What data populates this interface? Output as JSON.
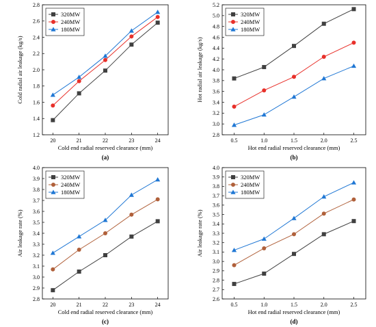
{
  "chart_data": [
    {
      "type": "line",
      "panel_label": "(a)",
      "xlabel": "Cold end radial reserved clearance (mm)",
      "ylabel": "Cold radial air leakage (kg/s)",
      "x": [
        20,
        21,
        22,
        23,
        24
      ],
      "x_ticks": [
        "20",
        "21",
        "22",
        "23",
        "24"
      ],
      "xlim": [
        19.6,
        24.4
      ],
      "ylim": [
        1.2,
        2.8
      ],
      "y_ticks": [
        "1.2",
        "1.4",
        "1.6",
        "1.8",
        "2.0",
        "2.2",
        "2.4",
        "2.6",
        "2.8"
      ],
      "legend": "top-left",
      "series": [
        {
          "name": "320MW",
          "color": "#404040",
          "marker": "square",
          "values": [
            1.38,
            1.71,
            1.99,
            2.31,
            2.58
          ]
        },
        {
          "name": "240MW",
          "color": "#e8302a",
          "marker": "circle",
          "values": [
            1.56,
            1.86,
            2.12,
            2.41,
            2.65
          ]
        },
        {
          "name": "180MW",
          "color": "#1f77d4",
          "marker": "triangle",
          "values": [
            1.69,
            1.91,
            2.17,
            2.48,
            2.71
          ]
        }
      ]
    },
    {
      "type": "line",
      "panel_label": "(b)",
      "xlabel": "Hot end radial reserved clearance (mm)",
      "ylabel": "Hot radial air leakage (kg/s)",
      "x": [
        0.5,
        1.0,
        1.5,
        2.0,
        2.5
      ],
      "x_ticks": [
        "0.5",
        "1.0",
        "1.5",
        "2.0",
        "2.5"
      ],
      "xlim": [
        0.3,
        2.7
      ],
      "ylim": [
        2.8,
        5.2
      ],
      "y_ticks": [
        "2.8",
        "3.0",
        "3.2",
        "3.4",
        "3.6",
        "3.8",
        "4.0",
        "4.2",
        "4.4",
        "4.6",
        "4.8",
        "5.0",
        "5.2"
      ],
      "legend": "top-left",
      "series": [
        {
          "name": "320MW",
          "color": "#404040",
          "marker": "square",
          "values": [
            3.84,
            4.05,
            4.44,
            4.85,
            5.12
          ]
        },
        {
          "name": "240MW",
          "color": "#e8302a",
          "marker": "circle",
          "values": [
            3.32,
            3.62,
            3.87,
            4.24,
            4.5
          ]
        },
        {
          "name": "180MW",
          "color": "#1f77d4",
          "marker": "triangle",
          "values": [
            2.98,
            3.17,
            3.5,
            3.84,
            4.07
          ]
        }
      ]
    },
    {
      "type": "line",
      "panel_label": "(c)",
      "xlabel": "Cold end radial reserved clearance (mm)",
      "ylabel": "Air leakage rate (%)",
      "x": [
        20,
        21,
        22,
        23,
        24
      ],
      "x_ticks": [
        "20",
        "21",
        "22",
        "23",
        "24"
      ],
      "xlim": [
        19.6,
        24.4
      ],
      "ylim": [
        2.8,
        4.0
      ],
      "y_ticks": [
        "2.8",
        "2.9",
        "3.0",
        "3.1",
        "3.2",
        "3.3",
        "3.4",
        "3.5",
        "3.6",
        "3.7",
        "3.8",
        "3.9",
        "4.0"
      ],
      "legend": "top-left",
      "series": [
        {
          "name": "320MW",
          "color": "#404040",
          "marker": "square",
          "values": [
            2.88,
            3.05,
            3.2,
            3.37,
            3.51
          ]
        },
        {
          "name": "240MW",
          "color": "#b0603a",
          "marker": "circle",
          "values": [
            3.07,
            3.25,
            3.4,
            3.57,
            3.71
          ]
        },
        {
          "name": "180MW",
          "color": "#1f77d4",
          "marker": "triangle",
          "values": [
            3.22,
            3.37,
            3.52,
            3.75,
            3.89
          ]
        }
      ]
    },
    {
      "type": "line",
      "panel_label": "(d)",
      "xlabel": "Hot end radial reserved clearance (mm)",
      "ylabel": "Air leakage rate (%)",
      "x": [
        0.5,
        1.0,
        1.5,
        2.0,
        2.5
      ],
      "x_ticks": [
        "0.5",
        "1.0",
        "1.5",
        "2.0",
        "2.5"
      ],
      "xlim": [
        0.3,
        2.7
      ],
      "ylim": [
        2.6,
        4.0
      ],
      "y_ticks": [
        "2.6",
        "2.7",
        "2.8",
        "2.9",
        "3.0",
        "3.1",
        "3.2",
        "3.3",
        "3.4",
        "3.5",
        "3.6",
        "3.7",
        "3.8",
        "3.9",
        "4.0"
      ],
      "legend": "top-left",
      "series": [
        {
          "name": "320MW",
          "color": "#404040",
          "marker": "square",
          "values": [
            2.76,
            2.87,
            3.08,
            3.29,
            3.43
          ]
        },
        {
          "name": "240MW",
          "color": "#b0603a",
          "marker": "circle",
          "values": [
            2.96,
            3.14,
            3.29,
            3.51,
            3.66
          ]
        },
        {
          "name": "180MW",
          "color": "#1f77d4",
          "marker": "triangle",
          "values": [
            3.12,
            3.24,
            3.46,
            3.69,
            3.84
          ]
        }
      ]
    }
  ]
}
